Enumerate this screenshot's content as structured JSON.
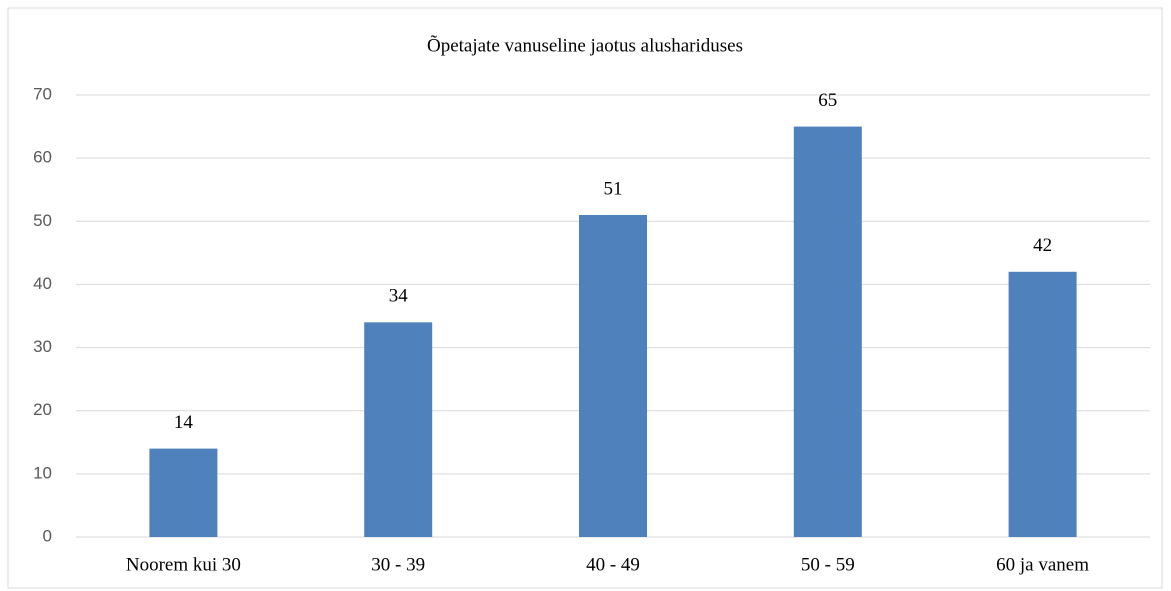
{
  "chart_data": {
    "type": "bar",
    "title": "Õpetajate vanuseline jaotus alushariduses",
    "categories": [
      "Noorem kui 30",
      "30 - 39",
      "40 - 49",
      "50 - 59",
      "60 ja vanem"
    ],
    "values": [
      14,
      34,
      51,
      65,
      42
    ],
    "color": "#4f81bd",
    "ylim": [
      0,
      70
    ],
    "yticks": [
      0,
      10,
      20,
      30,
      40,
      50,
      60,
      70
    ],
    "grid": true,
    "data_labels": true
  }
}
